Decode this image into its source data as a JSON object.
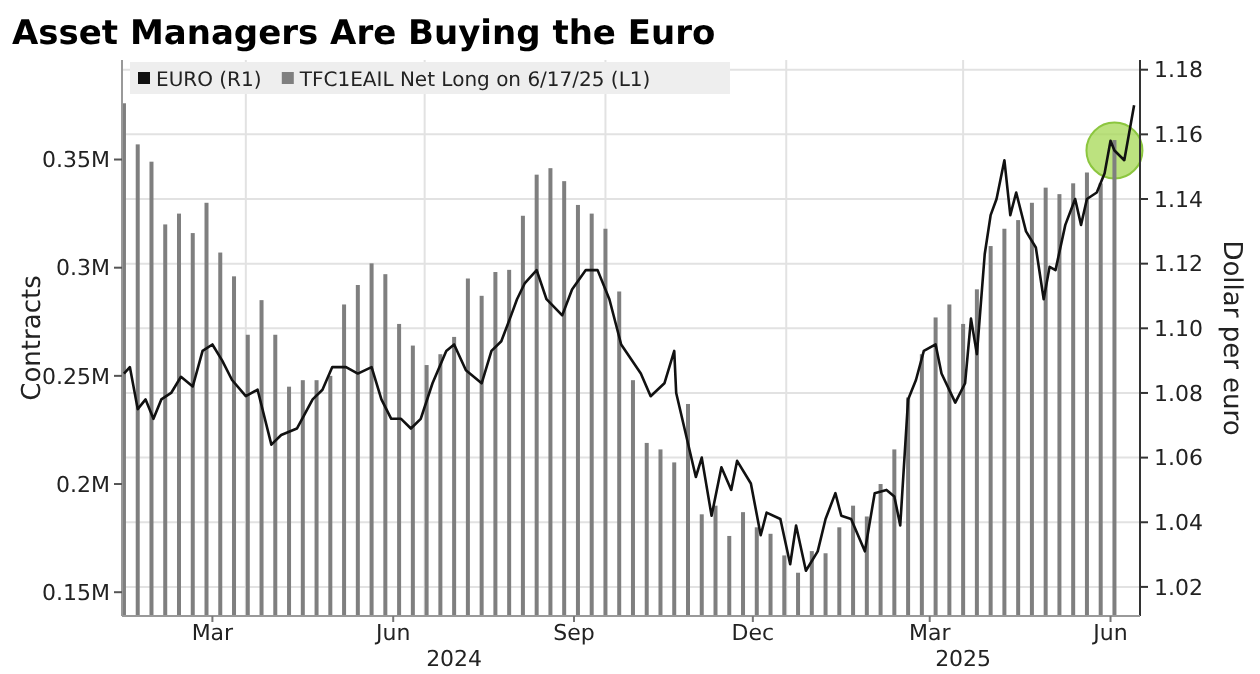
{
  "chart_data": {
    "type": "bar",
    "title": "Asset Managers Are Buying the Euro",
    "ylabel": "Contracts",
    "y2label": "Dollar per euro",
    "xlim": [
      "2024-01-29",
      "2025-06-30"
    ],
    "xticks": [
      {
        "value": "2024-03-15",
        "label": "Mar"
      },
      {
        "value": "2024-04-01",
        "label": null
      },
      {
        "value": "2024-06-15",
        "label": "Jun"
      },
      {
        "value": "2024-07-01",
        "label": null
      },
      {
        "value": "2024-09-15",
        "label": "Sep"
      },
      {
        "value": "2024-10-01",
        "label": null
      },
      {
        "value": "2024-12-15",
        "label": "Dec"
      },
      {
        "value": "2025-01-01",
        "label": null
      },
      {
        "value": "2025-03-15",
        "label": "Mar"
      },
      {
        "value": "2025-04-01",
        "label": null
      },
      {
        "value": "2025-06-15",
        "label": "Jun"
      }
    ],
    "annotations": [
      "2024",
      "2025"
    ],
    "ylim": [
      0.139,
      0.396
    ],
    "yticks": [
      {
        "value": 0.15,
        "label": "0.15M"
      },
      {
        "value": 0.2,
        "label": "0.2M"
      },
      {
        "value": 0.25,
        "label": "0.25M"
      },
      {
        "value": 0.3,
        "label": "0.3M"
      },
      {
        "value": 0.35,
        "label": "0.35M"
      }
    ],
    "y2lim": [
      1.011,
      1.183
    ],
    "y2ticks": [
      {
        "value": 1.02,
        "label": "1.02"
      },
      {
        "value": 1.04,
        "label": "1.04"
      },
      {
        "value": 1.06,
        "label": "1.06"
      },
      {
        "value": 1.08,
        "label": "1.08"
      },
      {
        "value": 1.1,
        "label": "1.10"
      },
      {
        "value": 1.12,
        "label": "1.12"
      },
      {
        "value": 1.14,
        "label": "1.14"
      },
      {
        "value": 1.16,
        "label": "1.16"
      },
      {
        "value": 1.18,
        "label": "1.18"
      }
    ],
    "grid": true,
    "legend": "top left",
    "series": [
      {
        "name": "EURO (R1)",
        "type": "line",
        "axis": "y2",
        "color": "#111111",
        "x": [
          "2024-01-30",
          "2024-02-02",
          "2024-02-06",
          "2024-02-10",
          "2024-02-14",
          "2024-02-18",
          "2024-02-23",
          "2024-02-28",
          "2024-03-05",
          "2024-03-10",
          "2024-03-15",
          "2024-03-20",
          "2024-03-25",
          "2024-04-01",
          "2024-04-07",
          "2024-04-14",
          "2024-04-19",
          "2024-04-27",
          "2024-05-05",
          "2024-05-10",
          "2024-05-15",
          "2024-05-22",
          "2024-05-28",
          "2024-06-04",
          "2024-06-09",
          "2024-06-14",
          "2024-06-19",
          "2024-06-24",
          "2024-06-29",
          "2024-07-05",
          "2024-07-12",
          "2024-07-16",
          "2024-07-22",
          "2024-07-30",
          "2024-08-04",
          "2024-08-09",
          "2024-08-14",
          "2024-08-17",
          "2024-08-21",
          "2024-08-27",
          "2024-09-01",
          "2024-09-09",
          "2024-09-14",
          "2024-09-21",
          "2024-09-27",
          "2024-10-03",
          "2024-10-09",
          "2024-10-19",
          "2024-10-24",
          "2024-10-31",
          "2024-11-05",
          "2024-11-06",
          "2024-11-16",
          "2024-11-19",
          "2024-11-24",
          "2024-11-29",
          "2024-12-04",
          "2024-12-07",
          "2024-12-14",
          "2024-12-19",
          "2024-12-22",
          "2024-12-29",
          "2025-01-03",
          "2025-01-06",
          "2025-01-11",
          "2025-01-17",
          "2025-01-21",
          "2025-01-26",
          "2025-01-29",
          "2025-02-03",
          "2025-02-10",
          "2025-02-15",
          "2025-02-21",
          "2025-02-25",
          "2025-02-28",
          "2025-03-04",
          "2025-03-08",
          "2025-03-12",
          "2025-03-18",
          "2025-03-21",
          "2025-03-28",
          "2025-04-02",
          "2025-04-05",
          "2025-04-08",
          "2025-04-12",
          "2025-04-15",
          "2025-04-18",
          "2025-04-22",
          "2025-04-25",
          "2025-04-28",
          "2025-05-03",
          "2025-05-08",
          "2025-05-12",
          "2025-05-15",
          "2025-05-18",
          "2025-05-23",
          "2025-05-28",
          "2025-05-31",
          "2025-06-03",
          "2025-06-08",
          "2025-06-12",
          "2025-06-15",
          "2025-06-17",
          "2025-06-22",
          "2025-06-27"
        ],
        "values": [
          1.086,
          1.088,
          1.075,
          1.078,
          1.072,
          1.078,
          1.08,
          1.085,
          1.082,
          1.093,
          1.095,
          1.09,
          1.084,
          1.079,
          1.081,
          1.064,
          1.067,
          1.069,
          1.078,
          1.081,
          1.088,
          1.088,
          1.086,
          1.088,
          1.078,
          1.072,
          1.072,
          1.069,
          1.072,
          1.083,
          1.093,
          1.095,
          1.087,
          1.083,
          1.093,
          1.096,
          1.104,
          1.109,
          1.114,
          1.118,
          1.109,
          1.104,
          1.112,
          1.118,
          1.118,
          1.109,
          1.095,
          1.086,
          1.079,
          1.083,
          1.093,
          1.08,
          1.054,
          1.06,
          1.042,
          1.057,
          1.05,
          1.059,
          1.052,
          1.036,
          1.043,
          1.041,
          1.027,
          1.039,
          1.025,
          1.031,
          1.041,
          1.049,
          1.042,
          1.041,
          1.031,
          1.049,
          1.05,
          1.048,
          1.039,
          1.078,
          1.084,
          1.093,
          1.095,
          1.086,
          1.077,
          1.083,
          1.103,
          1.092,
          1.123,
          1.135,
          1.14,
          1.152,
          1.135,
          1.142,
          1.13,
          1.125,
          1.109,
          1.119,
          1.118,
          1.132,
          1.14,
          1.132,
          1.14,
          1.142,
          1.148,
          1.158,
          1.155,
          1.152,
          1.169
        ]
      },
      {
        "name": "TFC1EAIL Net Long on 6/17/25 (L1)",
        "color": "#7f7f7f",
        "x": [
          "2024-01-30",
          "2024-02-06",
          "2024-02-13",
          "2024-02-20",
          "2024-02-27",
          "2024-03-05",
          "2024-03-12",
          "2024-03-19",
          "2024-03-26",
          "2024-04-02",
          "2024-04-09",
          "2024-04-16",
          "2024-04-23",
          "2024-04-30",
          "2024-05-07",
          "2024-05-14",
          "2024-05-21",
          "2024-05-28",
          "2024-06-04",
          "2024-06-11",
          "2024-06-18",
          "2024-06-25",
          "2024-07-02",
          "2024-07-09",
          "2024-07-16",
          "2024-07-23",
          "2024-07-30",
          "2024-08-06",
          "2024-08-13",
          "2024-08-20",
          "2024-08-27",
          "2024-09-03",
          "2024-09-10",
          "2024-09-17",
          "2024-09-24",
          "2024-10-01",
          "2024-10-08",
          "2024-10-15",
          "2024-10-22",
          "2024-10-29",
          "2024-11-05",
          "2024-11-12",
          "2024-11-19",
          "2024-11-26",
          "2024-12-03",
          "2024-12-10",
          "2024-12-17",
          "2024-12-24",
          "2024-12-31",
          "2025-01-07",
          "2025-01-14",
          "2025-01-21",
          "2025-01-28",
          "2025-02-04",
          "2025-02-11",
          "2025-02-18",
          "2025-02-25",
          "2025-03-04",
          "2025-03-11",
          "2025-03-18",
          "2025-03-25",
          "2025-04-01",
          "2025-04-08",
          "2025-04-15",
          "2025-04-22",
          "2025-04-29",
          "2025-05-06",
          "2025-05-13",
          "2025-05-20",
          "2025-05-27",
          "2025-06-03",
          "2025-06-10",
          "2025-06-17"
        ],
        "values": [
          0.376,
          0.357,
          0.349,
          0.32,
          0.325,
          0.316,
          0.33,
          0.307,
          0.296,
          0.269,
          0.285,
          0.269,
          0.245,
          0.248,
          0.248,
          0.25,
          0.283,
          0.292,
          0.302,
          0.297,
          0.274,
          0.264,
          0.255,
          0.26,
          0.268,
          0.295,
          0.287,
          0.298,
          0.299,
          0.324,
          0.343,
          0.346,
          0.34,
          0.329,
          0.325,
          0.318,
          0.289,
          0.248,
          0.219,
          0.216,
          0.21,
          0.237,
          0.186,
          0.19,
          0.176,
          0.187,
          0.18,
          0.177,
          0.167,
          0.159,
          0.169,
          0.168,
          0.18,
          0.19,
          0.185,
          0.2,
          0.216,
          0.24,
          0.26,
          0.277,
          0.283,
          0.274,
          0.29,
          0.31,
          0.318,
          0.322,
          0.33,
          0.337,
          0.334,
          0.339,
          0.344,
          0.339,
          0.359
        ]
      }
    ]
  }
}
